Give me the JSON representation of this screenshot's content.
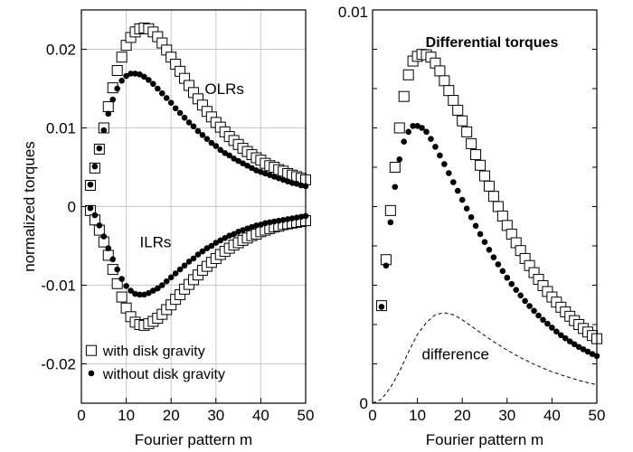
{
  "chart_data": [
    {
      "type": "scatter",
      "panel": "left",
      "xlabel": "Fourier pattern m",
      "ylabel": "normalized torques",
      "xlim": [
        0,
        50
      ],
      "ylim": [
        -0.025,
        0.025
      ],
      "xticks": [
        "0",
        "10",
        "20",
        "30",
        "40",
        "50"
      ],
      "yticks": [
        "-0.02",
        "-0.01",
        "0",
        "0.01",
        "0.02"
      ],
      "grid": true,
      "annotations": [
        "OLRs",
        "ILRs"
      ],
      "legend": {
        "position": "bottom-left",
        "entries": [
          {
            "label": "with disk gravity",
            "marker": "open-square"
          },
          {
            "label": "without disk gravity",
            "marker": "filled-circle"
          }
        ]
      },
      "x": [
        2,
        3,
        4,
        5,
        6,
        7,
        8,
        9,
        10,
        11,
        12,
        13,
        14,
        15,
        16,
        17,
        18,
        19,
        20,
        21,
        22,
        23,
        24,
        25,
        26,
        27,
        28,
        29,
        30,
        31,
        32,
        33,
        34,
        35,
        36,
        37,
        38,
        39,
        40,
        41,
        42,
        43,
        44,
        45,
        46,
        47,
        48,
        49,
        50
      ],
      "series": [
        {
          "group": "OLRs",
          "legend_index": 0,
          "values": [
            0.0027,
            0.0049,
            0.0073,
            0.01,
            0.0127,
            0.0151,
            0.0173,
            0.019,
            0.0205,
            0.0215,
            0.0222,
            0.0226,
            0.0227,
            0.0226,
            0.0222,
            0.0216,
            0.0208,
            0.0199,
            0.019,
            0.0181,
            0.0172,
            0.0163,
            0.0154,
            0.0145,
            0.0137,
            0.0129,
            0.0121,
            0.0114,
            0.0107,
            0.0101,
            0.0095,
            0.0089,
            0.0084,
            0.0079,
            0.0074,
            0.007,
            0.0066,
            0.0062,
            0.0059,
            0.0055,
            0.0052,
            0.005,
            0.0047,
            0.0045,
            0.0042,
            0.004,
            0.0038,
            0.0036,
            0.0034
          ]
        },
        {
          "group": "OLRs",
          "legend_index": 1,
          "values": [
            0.0028,
            0.0051,
            0.0074,
            0.0097,
            0.0118,
            0.0136,
            0.015,
            0.016,
            0.0166,
            0.0169,
            0.0169,
            0.0168,
            0.0165,
            0.0161,
            0.0156,
            0.015,
            0.0144,
            0.0138,
            0.0132,
            0.0125,
            0.0119,
            0.0113,
            0.0107,
            0.0102,
            0.0096,
            0.0091,
            0.0086,
            0.0081,
            0.0077,
            0.0072,
            0.0068,
            0.0065,
            0.0061,
            0.0058,
            0.0055,
            0.0052,
            0.0049,
            0.0046,
            0.0044,
            0.0042,
            0.004,
            0.0038,
            0.0036,
            0.0034,
            0.0032,
            0.003,
            0.0029,
            0.0027,
            0.0026
          ]
        },
        {
          "group": "ILRs",
          "legend_index": 0,
          "values": [
            -0.0005,
            -0.0017,
            -0.003,
            -0.0045,
            -0.0062,
            -0.008,
            -0.0098,
            -0.0115,
            -0.0129,
            -0.014,
            -0.0147,
            -0.015,
            -0.0151,
            -0.0149,
            -0.0146,
            -0.0142,
            -0.0137,
            -0.0131,
            -0.0125,
            -0.0118,
            -0.0112,
            -0.0105,
            -0.0099,
            -0.0093,
            -0.0087,
            -0.0081,
            -0.0076,
            -0.0071,
            -0.0066,
            -0.0061,
            -0.0057,
            -0.0053,
            -0.0049,
            -0.0046,
            -0.0043,
            -0.004,
            -0.0037,
            -0.0035,
            -0.0032,
            -0.003,
            -0.0028,
            -0.0026,
            -0.0025,
            -0.0023,
            -0.0022,
            -0.0021,
            -0.002,
            -0.0019,
            -0.0018
          ]
        },
        {
          "group": "ILRs",
          "legend_index": 1,
          "values": [
            -0.0002,
            -0.0011,
            -0.0024,
            -0.0038,
            -0.0053,
            -0.0067,
            -0.008,
            -0.0092,
            -0.0101,
            -0.0107,
            -0.0111,
            -0.0112,
            -0.0112,
            -0.011,
            -0.0107,
            -0.0104,
            -0.01,
            -0.0095,
            -0.009,
            -0.0085,
            -0.008,
            -0.0075,
            -0.007,
            -0.0066,
            -0.0061,
            -0.0057,
            -0.0053,
            -0.005,
            -0.0046,
            -0.0043,
            -0.004,
            -0.0037,
            -0.0035,
            -0.0032,
            -0.003,
            -0.0028,
            -0.0026,
            -0.0024,
            -0.0023,
            -0.0021,
            -0.002,
            -0.0019,
            -0.0018,
            -0.0017,
            -0.0016,
            -0.0015,
            -0.0014,
            -0.0013,
            -0.0012
          ]
        }
      ]
    },
    {
      "type": "scatter",
      "panel": "right",
      "title": "Differential torques",
      "xlabel": "Fourier pattern m",
      "xlim": [
        0,
        50
      ],
      "ylim": [
        0,
        0.01
      ],
      "xticks": [
        "0",
        "10",
        "20",
        "30",
        "40",
        "50"
      ],
      "yticks": [
        "0",
        "0.01"
      ],
      "grid": false,
      "annotations": [
        "difference"
      ],
      "x": [
        2,
        3,
        4,
        5,
        6,
        7,
        8,
        9,
        10,
        11,
        12,
        13,
        14,
        15,
        16,
        17,
        18,
        19,
        20,
        21,
        22,
        23,
        24,
        25,
        26,
        27,
        28,
        29,
        30,
        31,
        32,
        33,
        34,
        35,
        36,
        37,
        38,
        39,
        40,
        41,
        42,
        43,
        44,
        45,
        46,
        47,
        48,
        49,
        50
      ],
      "series": [
        {
          "legend_index": 0,
          "values": [
            0.00248,
            0.00365,
            0.0049,
            0.006,
            0.007,
            0.0078,
            0.00835,
            0.0087,
            0.00882,
            0.00887,
            0.00886,
            0.0088,
            0.00865,
            0.00845,
            0.0082,
            0.00795,
            0.0077,
            0.00745,
            0.00718,
            0.0069,
            0.0066,
            0.00632,
            0.00605,
            0.00578,
            0.00552,
            0.00526,
            0.005,
            0.00476,
            0.00452,
            0.0043,
            0.00408,
            0.00388,
            0.00368,
            0.0035,
            0.00332,
            0.00315,
            0.00299,
            0.00284,
            0.0027,
            0.00257,
            0.00244,
            0.00232,
            0.00221,
            0.0021,
            0.002,
            0.0019,
            0.00181,
            0.00172,
            0.00164
          ]
        },
        {
          "legend_index": 1,
          "values": [
            0.00245,
            0.0035,
            0.0046,
            0.0055,
            0.0062,
            0.00665,
            0.0069,
            0.00705,
            0.00705,
            0.007,
            0.0069,
            0.00672,
            0.00652,
            0.0063,
            0.00608,
            0.00585,
            0.00562,
            0.0054,
            0.00517,
            0.00495,
            0.00473,
            0.00451,
            0.0043,
            0.0041,
            0.0039,
            0.00371,
            0.00353,
            0.00336,
            0.00319,
            0.00303,
            0.00288,
            0.00274,
            0.0026,
            0.00247,
            0.00235,
            0.00223,
            0.00212,
            0.00202,
            0.00192,
            0.00182,
            0.00173,
            0.00165,
            0.00157,
            0.0015,
            0.00143,
            0.00137,
            0.00131,
            0.00125,
            0.0012
          ]
        },
        {
          "label": "difference",
          "style": "dashed-line",
          "x": [
            0,
            2,
            4,
            6,
            8,
            10,
            12,
            14,
            16,
            18,
            20,
            22,
            24,
            26,
            28,
            30,
            32,
            34,
            36,
            38,
            40,
            42,
            44,
            46,
            48,
            50
          ],
          "values": [
            0,
            0.0001,
            0.0004,
            0.0008,
            0.0013,
            0.00175,
            0.00205,
            0.00225,
            0.0023,
            0.00225,
            0.00212,
            0.00196,
            0.0018,
            0.00164,
            0.00149,
            0.00135,
            0.00122,
            0.0011,
            0.00099,
            0.00089,
            0.0008,
            0.00072,
            0.00065,
            0.00058,
            0.00052,
            0.00047
          ]
        }
      ]
    }
  ]
}
